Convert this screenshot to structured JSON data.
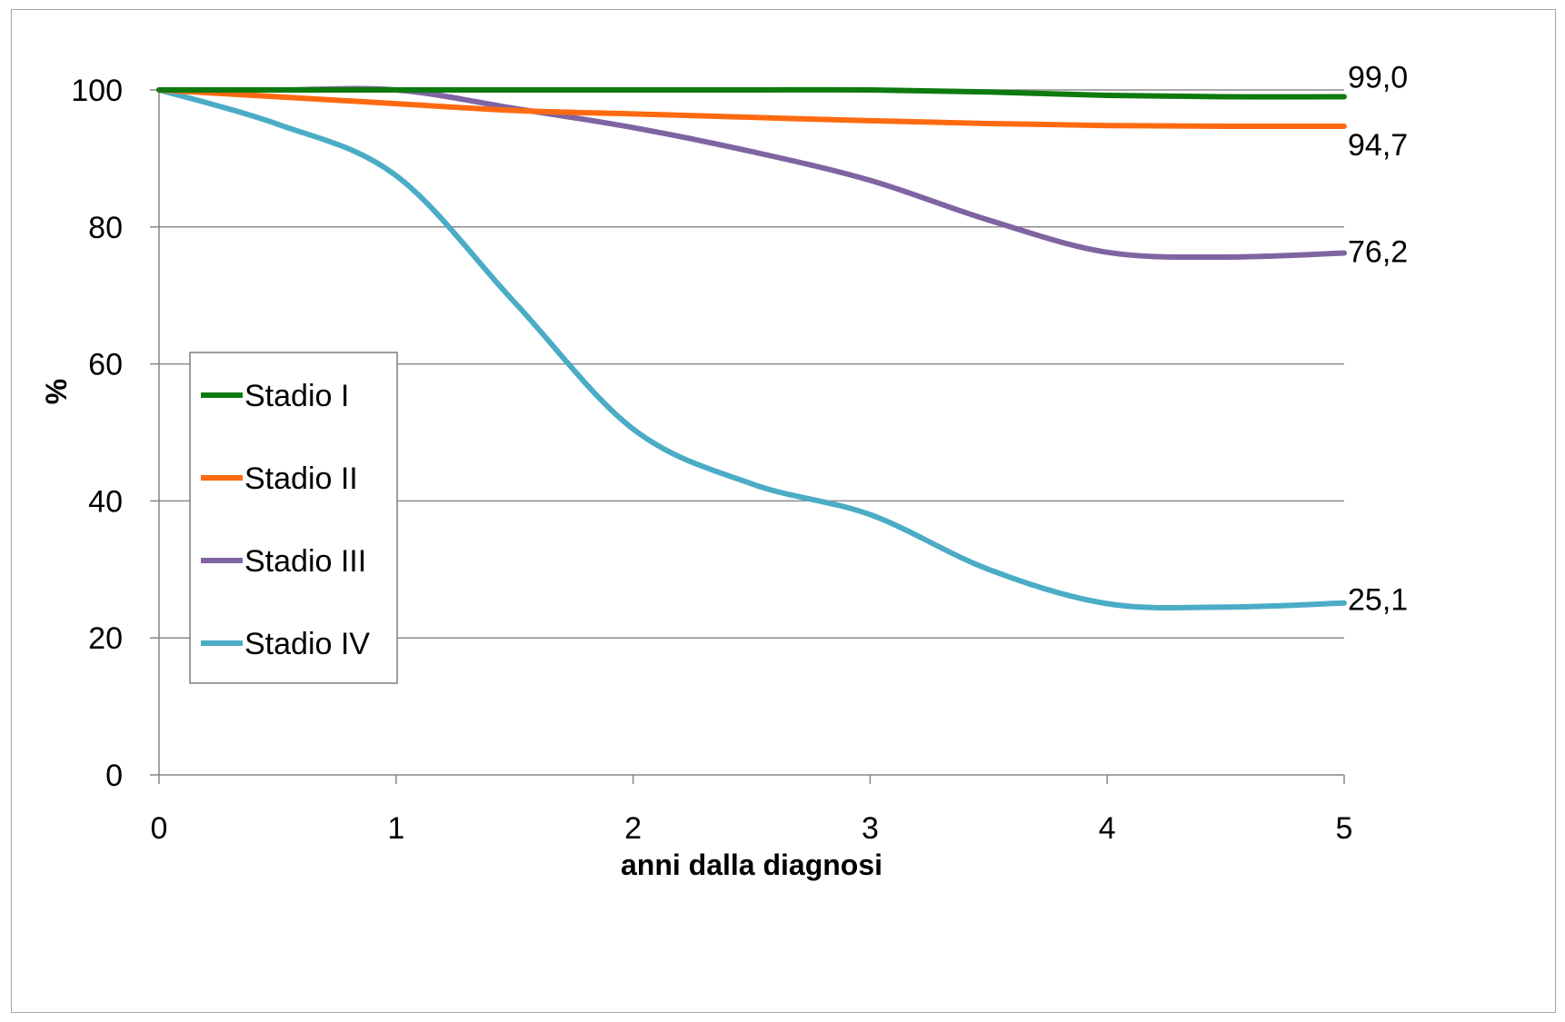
{
  "chart_data": {
    "type": "line",
    "xlabel": "anni dalla diagnosi",
    "ylabel": "%",
    "xlim": [
      0,
      5
    ],
    "ylim": [
      0,
      100
    ],
    "x_ticks": [
      "0",
      "1",
      "2",
      "3",
      "4",
      "5"
    ],
    "y_ticks": [
      "0",
      "20",
      "40",
      "60",
      "80",
      "100"
    ],
    "grid": "horizontal",
    "legend_position": "left-middle",
    "x": [
      0,
      0.5,
      1,
      1.5,
      2,
      2.5,
      3,
      3.5,
      4,
      4.5,
      5
    ],
    "series": [
      {
        "name": "Stadio I",
        "color": "#0e7a0e",
        "values": [
          100,
          100,
          100,
          100,
          100,
          100,
          100,
          99.7,
          99.2,
          99.0,
          99.0
        ],
        "end_label": "99,0"
      },
      {
        "name": "Stadio II",
        "color": "#ff6a10",
        "values": [
          100,
          99.0,
          98.0,
          97.0,
          96.5,
          96.0,
          95.5,
          95.1,
          94.8,
          94.7,
          94.7
        ],
        "end_label": "94,7"
      },
      {
        "name": "Stadio III",
        "color": "#8064a2",
        "values": [
          100,
          100,
          100,
          97.3,
          94.5,
          91.0,
          86.8,
          81.0,
          76.3,
          75.6,
          76.2
        ],
        "end_label": "76,2"
      },
      {
        "name": "Stadio IV",
        "color": "#4bacc6",
        "values": [
          100,
          95.0,
          87.5,
          69.0,
          50.5,
          42.5,
          38.0,
          30.0,
          25.0,
          24.5,
          25.1
        ],
        "end_label": "25,1"
      }
    ]
  }
}
